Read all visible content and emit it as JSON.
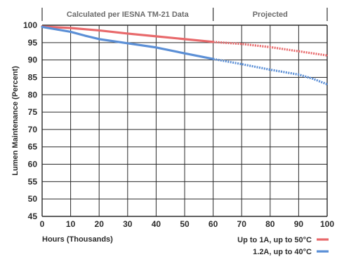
{
  "chart_data": {
    "type": "line",
    "header_sections": [
      {
        "label": "Calculated per IESNA TM-21 Data",
        "from": 0,
        "to": 60
      },
      {
        "label": "Projected",
        "from": 60,
        "to": 100
      }
    ],
    "xlabel": "Hours (Thousands)",
    "ylabel": "Lumen Maintenance (Percent)",
    "xlim": [
      0,
      100
    ],
    "ylim": [
      45,
      100
    ],
    "xticks": [
      0,
      10,
      20,
      30,
      40,
      50,
      60,
      70,
      80,
      90,
      100
    ],
    "yticks": [
      45,
      50,
      55,
      60,
      65,
      70,
      75,
      80,
      85,
      90,
      95,
      100
    ],
    "grid": true,
    "legend_position": "bottom-right",
    "solid_until_x": 60,
    "series": [
      {
        "name": "Up to 1A, up to  50°C",
        "color": "#e8696b",
        "x": [
          0,
          10,
          20,
          30,
          40,
          50,
          60,
          70,
          80,
          90,
          100
        ],
        "y": [
          99.6,
          99.2,
          98.5,
          97.6,
          96.8,
          96.0,
          95.2,
          94.6,
          93.7,
          92.5,
          91.3
        ]
      },
      {
        "name": "1.2A, up to  40°C",
        "color": "#5b8fd6",
        "x": [
          0,
          5,
          10,
          15,
          20,
          30,
          40,
          50,
          60,
          70,
          80,
          90,
          95,
          100
        ],
        "y": [
          99.5,
          98.8,
          98.1,
          97.0,
          96.0,
          94.8,
          93.6,
          91.9,
          90.3,
          88.8,
          87.2,
          85.8,
          84.6,
          83.0
        ]
      }
    ]
  }
}
